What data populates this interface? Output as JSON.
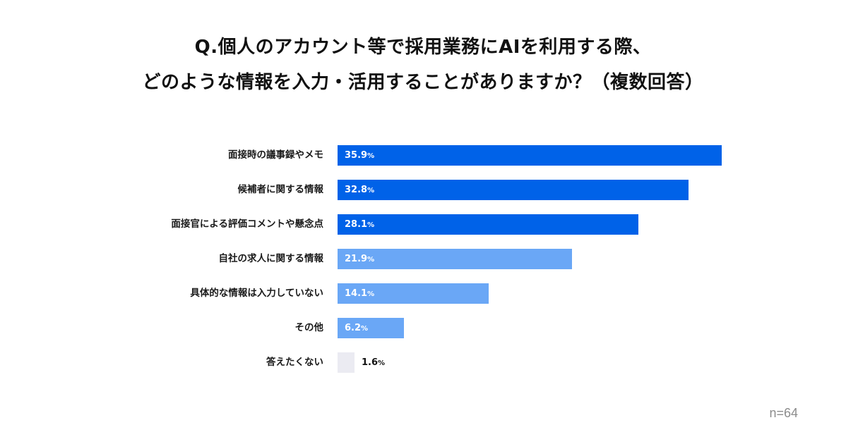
{
  "title": {
    "line1": "Q.個人のアカウント等で採用業務にAIを利用する際、",
    "line2": "どのような情報を入力・活用することがありますか？（複数回答）"
  },
  "sample_size": "n=64",
  "colors": {
    "dark": "#0062e8",
    "light": "#6aa7f6",
    "gray": "#ebebf2",
    "text_inside": "#ffffff",
    "text_outside": "#111111"
  },
  "chart_data": {
    "type": "bar",
    "orientation": "horizontal",
    "title": "Q.個人のアカウント等で採用業務にAIを利用する際、どのような情報を入力・活用することがありますか？（複数回答）",
    "xlabel": "",
    "ylabel": "",
    "unit": "%",
    "categories": [
      "面接時の議事録やメモ",
      "候補者に関する情報",
      "面接官による評価コメントや懸念点",
      "自社の求人に関する情報",
      "具体的な情報は入力していない",
      "その他",
      "答えたくない"
    ],
    "values": [
      35.9,
      32.8,
      28.1,
      21.9,
      14.1,
      6.2,
      1.6
    ],
    "bar_colors": [
      "#0062e8",
      "#0062e8",
      "#0062e8",
      "#6aa7f6",
      "#6aa7f6",
      "#6aa7f6",
      "#ebebf2"
    ],
    "grid": false,
    "legend": null,
    "note": "n=64"
  },
  "rows": [
    {
      "label": "面接時の議事録やメモ",
      "value": "35.9",
      "pct": "%"
    },
    {
      "label": "候補者に関する情報",
      "value": "32.8",
      "pct": "%"
    },
    {
      "label": "面接官による評価コメントや懸念点",
      "value": "28.1",
      "pct": "%"
    },
    {
      "label": "自社の求人に関する情報",
      "value": "21.9",
      "pct": "%"
    },
    {
      "label": "具体的な情報は入力していない",
      "value": "14.1",
      "pct": "%"
    },
    {
      "label": "その他",
      "value": "6.2",
      "pct": "%"
    },
    {
      "label": "答えたくない",
      "value": "1.6",
      "pct": "%"
    }
  ]
}
